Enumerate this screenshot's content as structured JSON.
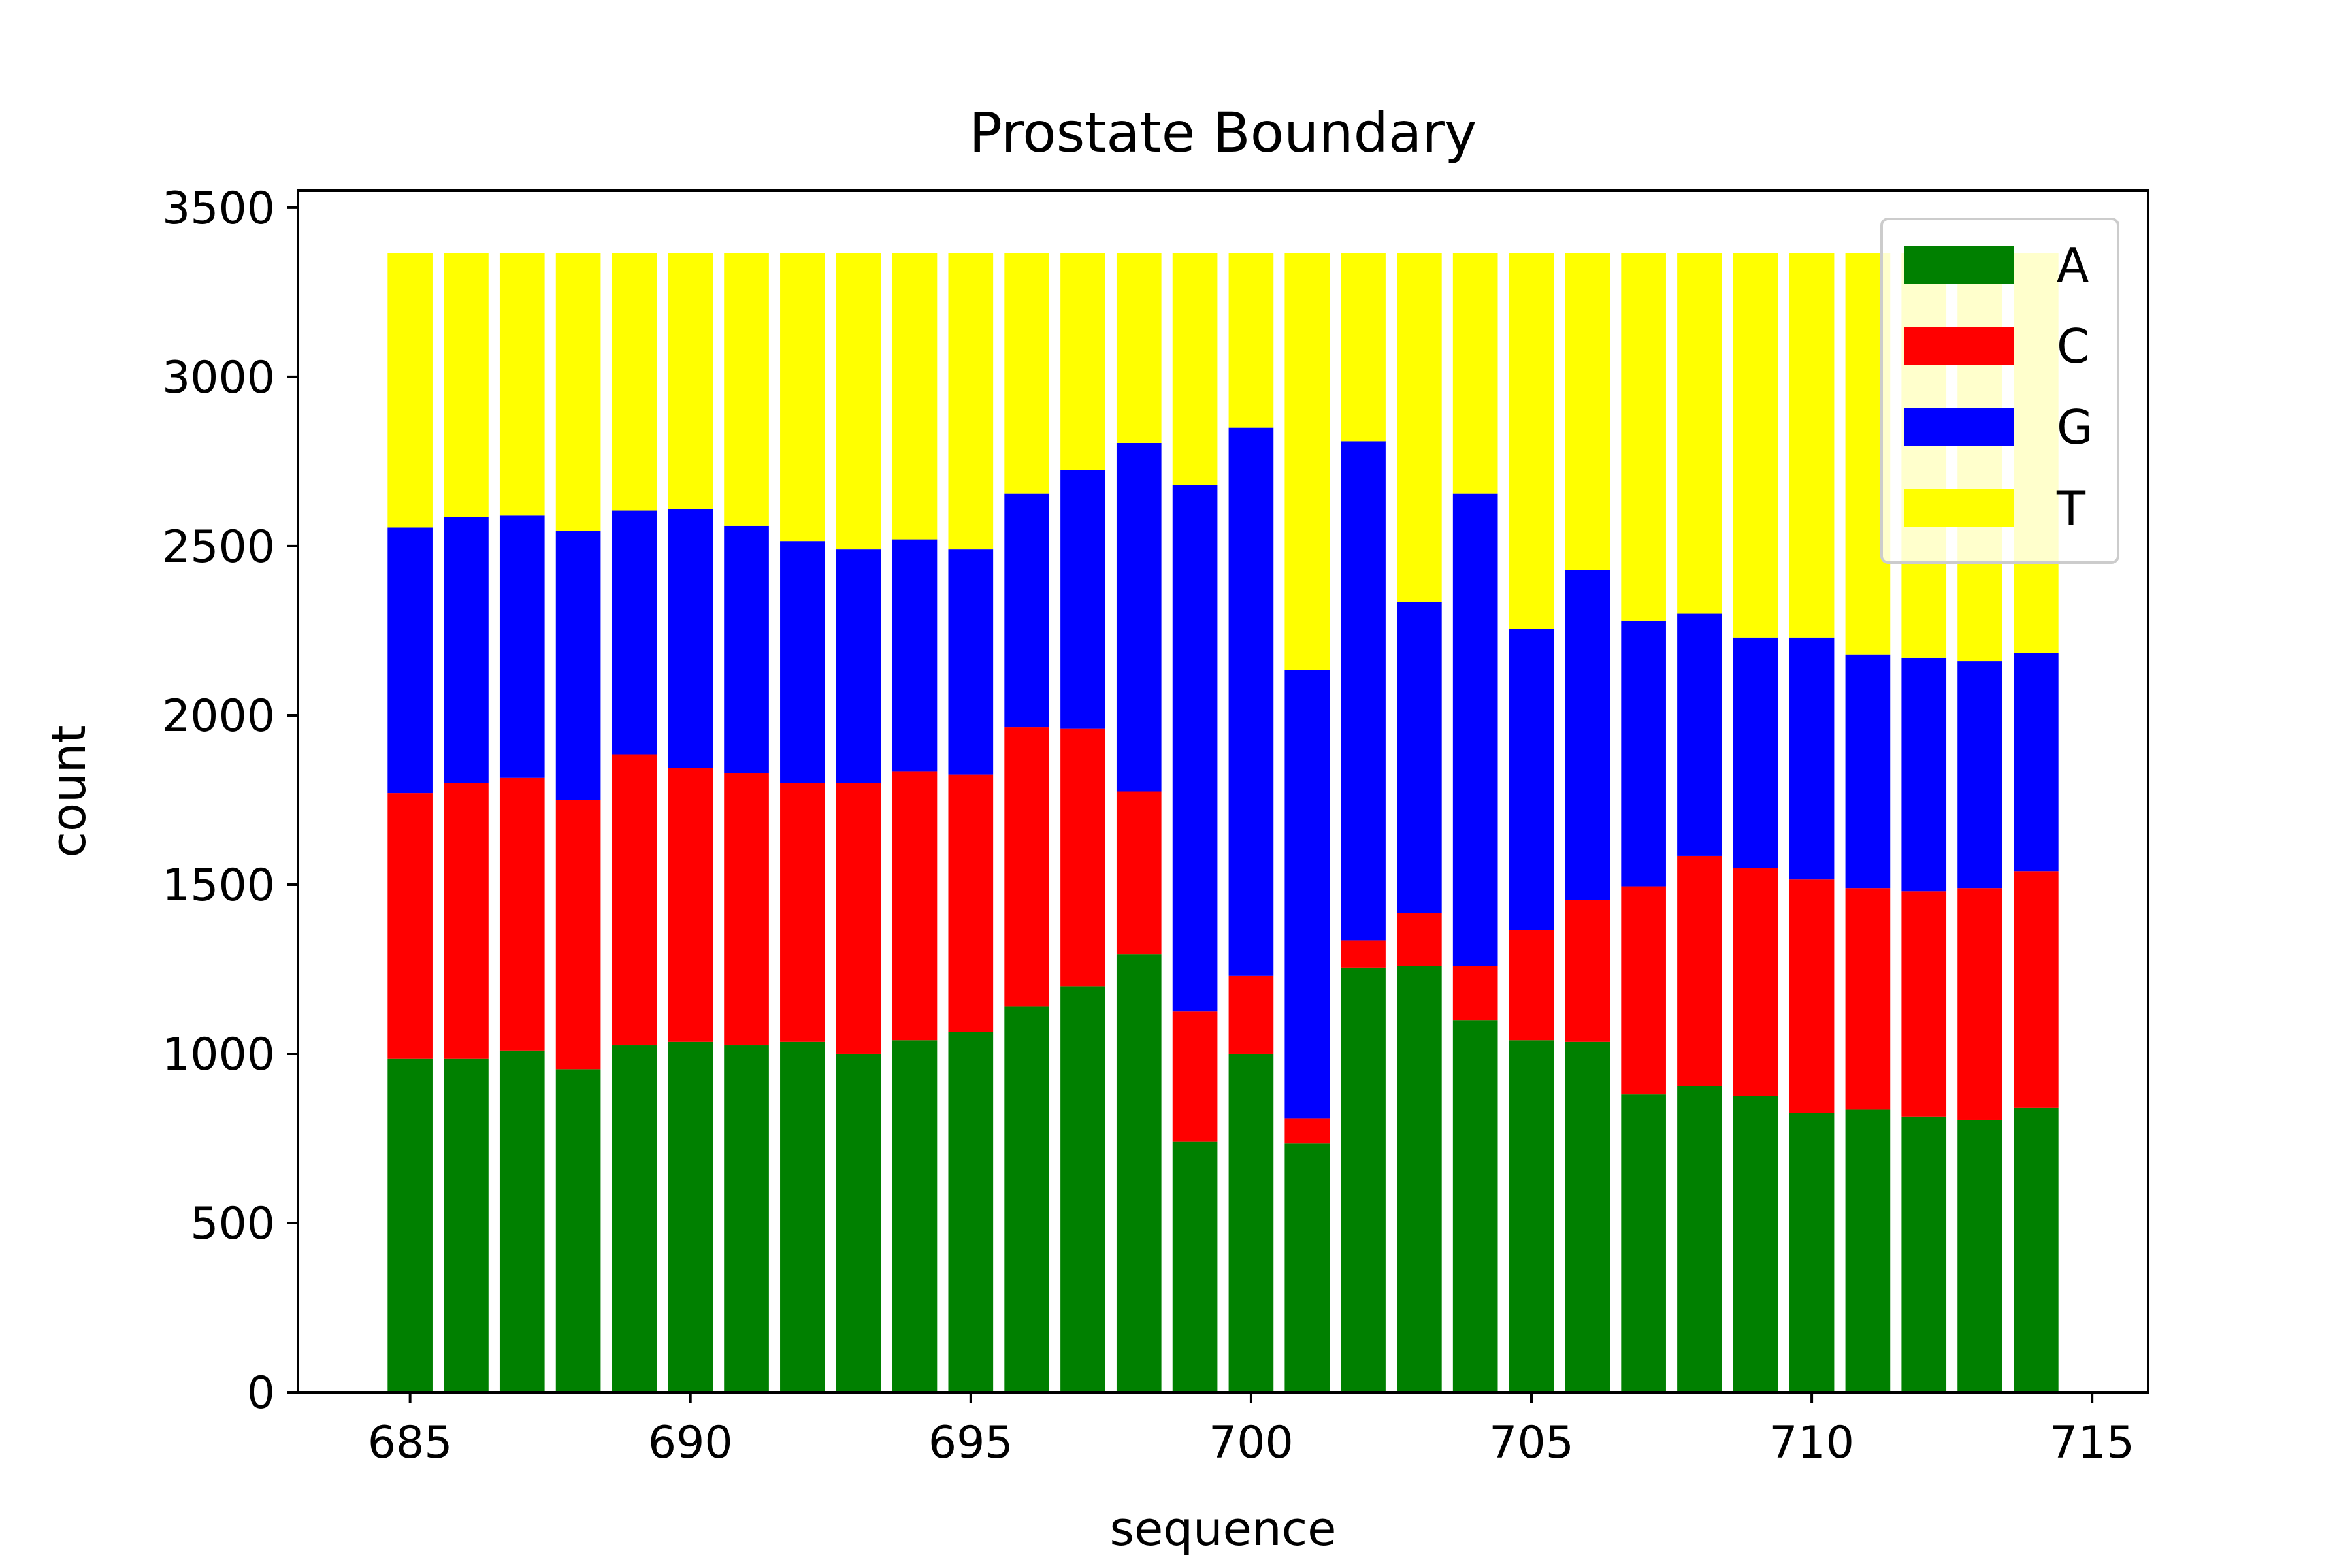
{
  "chart_data": {
    "type": "bar",
    "stacked": true,
    "title": "Prostate Boundary",
    "xlabel": "sequence",
    "ylabel": "count",
    "xlim": [
      683,
      716
    ],
    "ylim": [
      0,
      3550
    ],
    "xticks": [
      685,
      690,
      695,
      700,
      705,
      710,
      715
    ],
    "yticks": [
      0,
      500,
      1000,
      1500,
      2000,
      2500,
      3000,
      3500
    ],
    "legend_position": "top-right",
    "x": [
      685,
      686,
      687,
      688,
      689,
      690,
      691,
      692,
      693,
      694,
      695,
      696,
      697,
      698,
      699,
      700,
      701,
      702,
      703,
      704,
      705,
      706,
      707,
      708,
      709,
      710,
      711,
      712,
      713,
      714
    ],
    "series": [
      {
        "name": "A",
        "color": "#008000",
        "values": [
          985,
          985,
          1010,
          955,
          1025,
          1035,
          1025,
          1035,
          1000,
          1040,
          1065,
          1140,
          1200,
          1295,
          740,
          1000,
          735,
          1255,
          1260,
          1100,
          1040,
          1035,
          880,
          905,
          875,
          825,
          835,
          815,
          805,
          840
        ]
      },
      {
        "name": "C",
        "color": "#ff0000",
        "values": [
          785,
          815,
          805,
          795,
          860,
          810,
          805,
          765,
          800,
          795,
          760,
          825,
          760,
          480,
          385,
          230,
          75,
          80,
          155,
          160,
          325,
          420,
          615,
          680,
          675,
          690,
          655,
          665,
          685,
          700
        ]
      },
      {
        "name": "G",
        "color": "#0000ff",
        "values": [
          785,
          785,
          775,
          795,
          720,
          765,
          730,
          715,
          690,
          685,
          665,
          690,
          765,
          1030,
          1555,
          1620,
          1325,
          1475,
          920,
          1395,
          890,
          975,
          785,
          715,
          680,
          715,
          690,
          690,
          670,
          645
        ]
      },
      {
        "name": "T",
        "color": "#ffff00",
        "values": [
          810,
          780,
          775,
          820,
          760,
          755,
          805,
          850,
          875,
          845,
          875,
          710,
          640,
          560,
          685,
          515,
          1230,
          555,
          1030,
          710,
          1110,
          935,
          1085,
          1065,
          1135,
          1135,
          1185,
          1195,
          1205,
          1180
        ]
      }
    ]
  }
}
